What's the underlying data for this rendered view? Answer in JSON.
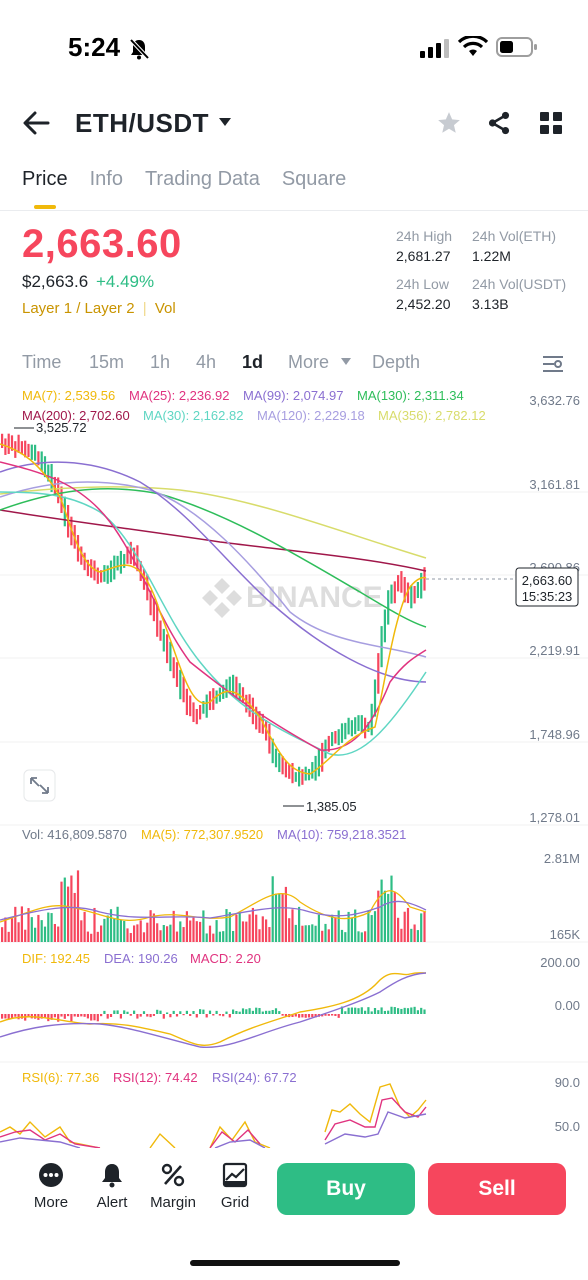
{
  "status": {
    "time": "5:24"
  },
  "header": {
    "pair": "ETH/USDT"
  },
  "tabs": [
    {
      "label": "Price",
      "active": true
    },
    {
      "label": "Info"
    },
    {
      "label": "Trading Data"
    },
    {
      "label": "Square"
    }
  ],
  "price": {
    "last": "2,663.60",
    "usd": "$2,663.6",
    "change": "+4.49%",
    "tag1": "Layer 1 / Layer 2",
    "tag2": "Vol"
  },
  "stats": {
    "high_label": "24h High",
    "high_value": "2,681.27",
    "volb_label": "24h Vol(ETH)",
    "volb_value": "1.22M",
    "low_label": "24h Low",
    "low_value": "2,452.20",
    "volq_label": "24h Vol(USDT)",
    "volq_value": "3.13B"
  },
  "intervals": {
    "time": "Time",
    "m15": "15m",
    "h1": "1h",
    "h4": "4h",
    "d1": "1d",
    "more": "More",
    "depth": "Depth"
  },
  "ma_legend": {
    "ma7": "MA(7): 2,539.56",
    "ma25": "MA(25): 2,236.92",
    "ma99": "MA(99): 2,074.97",
    "ma130": "MA(130): 2,311.34",
    "ma200": "MA(200): 2,702.60",
    "ma30": "MA(30): 2,162.82",
    "ma120": "MA(120): 2,229.18",
    "ma356": "MA(356): 2,782.12"
  },
  "price_axis": [
    "3,632.76",
    "3,161.81",
    "2,690.86",
    "2,219.91",
    "1,748.96",
    "1,278.01"
  ],
  "markers": {
    "high": "3,525.72",
    "low": "1,385.05",
    "current": "2,663.60",
    "countdown": "15:35:23"
  },
  "watermark": "BINANCE",
  "volume": {
    "vol": "Vol: 416,809.5870",
    "ma5": "MA(5): 772,307.9520",
    "ma10": "MA(10): 759,218.3521",
    "axis_top": "2.81M",
    "axis_bottom": "165K"
  },
  "macd": {
    "dif": "DIF: 192.45",
    "dea": "DEA: 190.26",
    "macd": "MACD: 2.20",
    "axis_top": "200.00",
    "axis_mid": "0.00"
  },
  "rsi": {
    "rsi6": "RSI(6): 77.36",
    "rsi12": "RSI(12): 74.42",
    "rsi24": "RSI(24): 67.72",
    "axis_top": "90.0",
    "axis_mid": "50.0"
  },
  "bottom": {
    "more": "More",
    "alert": "Alert",
    "margin": "Margin",
    "grid": "Grid",
    "buy": "Buy",
    "sell": "Sell"
  },
  "colors": {
    "up": "#2ebd85",
    "down": "#f6465d",
    "accent": "#f0b90b",
    "ma7": "#f0b90b",
    "ma25": "#e0337f",
    "ma99": "#8a6fd1",
    "ma130": "#2ebd5a",
    "ma200": "#a0174a",
    "ma30": "#5fd6c3",
    "ma120": "#a79ee0",
    "ma356": "#d8dc6b"
  },
  "icons": [
    "back-arrow-icon",
    "caret-down-icon",
    "star-icon",
    "share-icon",
    "grid-icon",
    "settings-icon",
    "expand-icon",
    "bell-off-icon",
    "signal-icon",
    "wifi-icon",
    "battery-icon",
    "more-dots-icon",
    "alert-bell-icon",
    "margin-percent-icon",
    "grid-bot-icon"
  ]
}
